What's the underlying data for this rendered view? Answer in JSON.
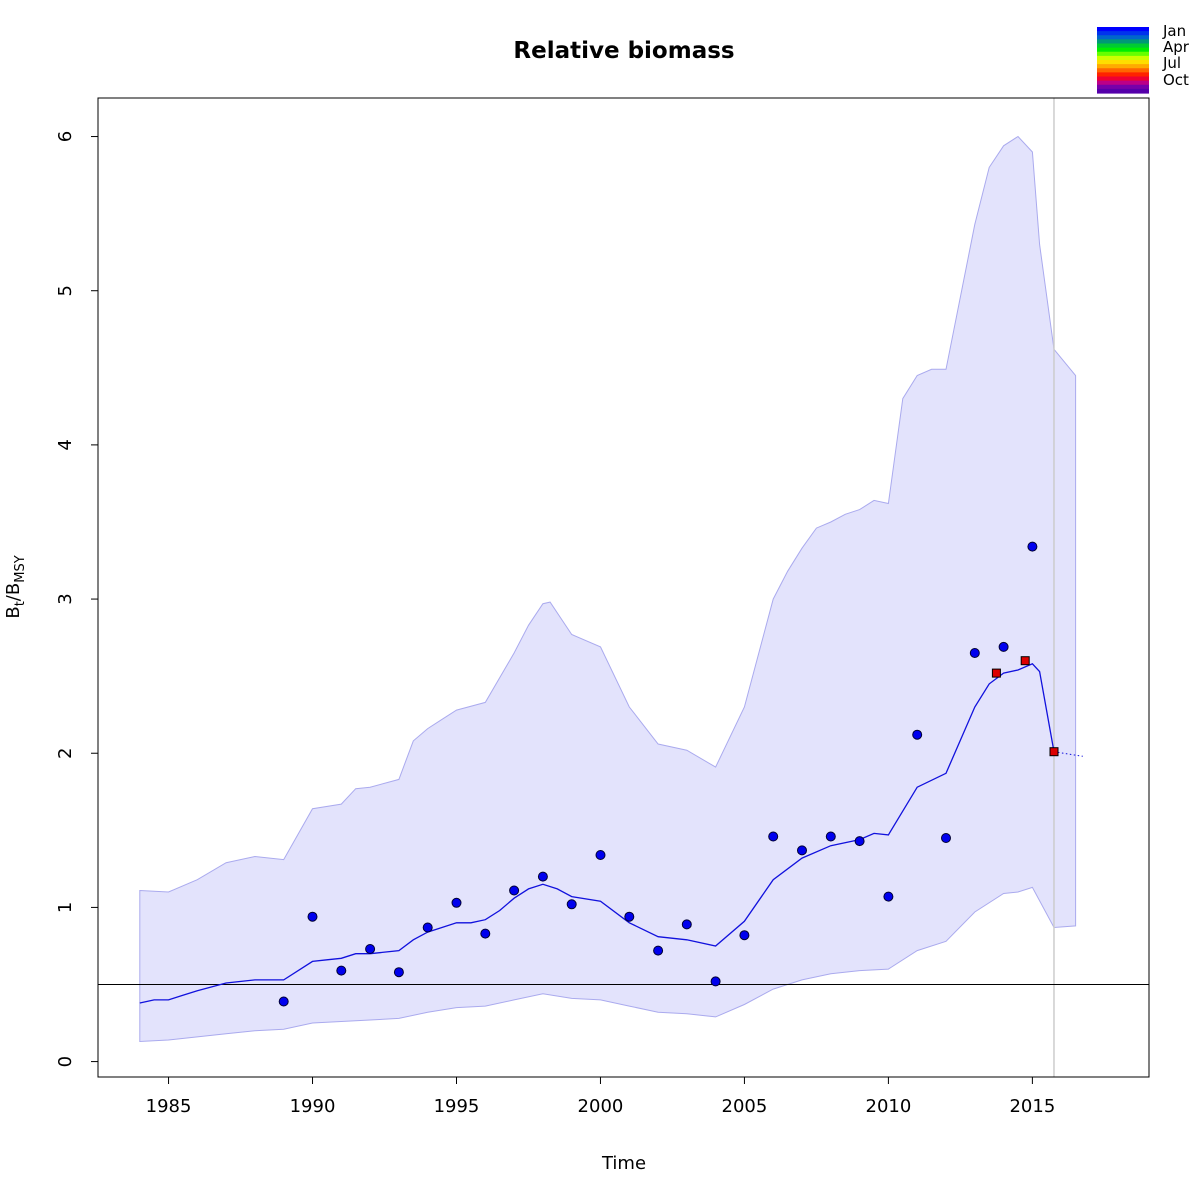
{
  "chart_data": {
    "type": "line",
    "title": "Relative biomass",
    "xlabel": "Time",
    "ylabel": {
      "main": "B",
      "sub1": "t",
      "sep": "/B",
      "sub2": "MSY"
    },
    "xlim": [
      1982.55,
      2019.05
    ],
    "ylim": [
      -0.1,
      6.25
    ],
    "x_ticks": [
      1985,
      1990,
      1995,
      2000,
      2005,
      2010,
      2015
    ],
    "y_ticks": [
      0,
      1,
      2,
      3,
      4,
      5,
      6
    ],
    "grid": false,
    "legend_placement": "top-right",
    "colors": {
      "band": "#e3e3fc",
      "band_edge": "#aaaaee",
      "line": "#1111dd",
      "points": "#0000ee",
      "highlight": "#dd0000",
      "reference_line": "#000000",
      "vertical_marker": "#cccccc"
    },
    "reference_line_y": 0.5,
    "vertical_marker_x": 2015.75,
    "legend": {
      "labels": [
        "Jan",
        "Apr",
        "Jul",
        "Oct"
      ],
      "color_scale": [
        "#0000ff",
        "#0033ee",
        "#0066cc",
        "#009977",
        "#00cc33",
        "#00ee00",
        "#66ff00",
        "#ccff00",
        "#ffdd00",
        "#ffaa00",
        "#ff6600",
        "#ff2200",
        "#ee0033",
        "#bb0088",
        "#7700aa",
        "#5500aa"
      ]
    },
    "series": [
      {
        "role": "confidence-band-upper",
        "x": [
          1984,
          1985,
          1986,
          1987,
          1988,
          1989,
          1990,
          1991,
          1991.5,
          1992,
          1993,
          1993.5,
          1994,
          1994.5,
          1995,
          1996,
          1997,
          1997.5,
          1998,
          1998.25,
          1999,
          2000,
          2001,
          2002,
          2003,
          2004,
          2005,
          2006,
          2006.5,
          2007,
          2007.5,
          2008,
          2008.5,
          2009,
          2009.5,
          2010,
          2010.5,
          2011,
          2011.5,
          2012,
          2013,
          2013.5,
          2014,
          2014.5,
          2015,
          2015.25,
          2015.75,
          2016.5
        ],
        "y": [
          1.11,
          1.1,
          1.18,
          1.29,
          1.33,
          1.31,
          1.64,
          1.67,
          1.77,
          1.78,
          1.83,
          2.08,
          2.16,
          2.22,
          2.28,
          2.33,
          2.65,
          2.83,
          2.97,
          2.98,
          2.77,
          2.69,
          2.3,
          2.06,
          2.02,
          1.91,
          2.3,
          3.0,
          3.18,
          3.33,
          3.46,
          3.5,
          3.55,
          3.58,
          3.64,
          3.62,
          4.3,
          4.45,
          4.49,
          4.49,
          5.43,
          5.8,
          5.94,
          6.0,
          5.9,
          5.3,
          4.62,
          4.45
        ]
      },
      {
        "role": "confidence-band-lower",
        "x": [
          1984,
          1985,
          1986,
          1987,
          1988,
          1989,
          1990,
          1991,
          1992,
          1993,
          1994,
          1995,
          1996,
          1997,
          1998,
          1999,
          2000,
          2001,
          2002,
          2003,
          2004,
          2005,
          2006,
          2007,
          2008,
          2009,
          2010,
          2011,
          2012,
          2013,
          2014,
          2014.5,
          2015,
          2015.75,
          2016.5
        ],
        "y": [
          0.13,
          0.14,
          0.16,
          0.18,
          0.2,
          0.21,
          0.25,
          0.26,
          0.27,
          0.28,
          0.32,
          0.35,
          0.36,
          0.4,
          0.44,
          0.41,
          0.4,
          0.36,
          0.32,
          0.31,
          0.29,
          0.37,
          0.47,
          0.53,
          0.57,
          0.59,
          0.6,
          0.72,
          0.78,
          0.97,
          1.09,
          1.1,
          1.13,
          0.87,
          0.88
        ]
      },
      {
        "role": "estimated-biomass",
        "x": [
          1984,
          1984.5,
          1985,
          1985.5,
          1986,
          1987,
          1988,
          1989,
          1990,
          1990.5,
          1991,
          1991.5,
          1992,
          1993,
          1993.5,
          1994,
          1995,
          1995.5,
          1996,
          1996.5,
          1997,
          1997.5,
          1998,
          1998.5,
          1999,
          2000,
          2001,
          2002,
          2003,
          2004,
          2005,
          2006,
          2007,
          2008,
          2009,
          2009.5,
          2010,
          2011,
          2012,
          2013,
          2013.5,
          2014,
          2014.5,
          2015,
          2015.25,
          2015.75
        ],
        "y": [
          0.38,
          0.4,
          0.4,
          0.43,
          0.46,
          0.51,
          0.53,
          0.53,
          0.65,
          0.66,
          0.67,
          0.7,
          0.7,
          0.72,
          0.79,
          0.84,
          0.9,
          0.9,
          0.92,
          0.98,
          1.06,
          1.12,
          1.15,
          1.12,
          1.07,
          1.04,
          0.9,
          0.81,
          0.79,
          0.75,
          0.91,
          1.18,
          1.32,
          1.4,
          1.44,
          1.48,
          1.47,
          1.78,
          1.87,
          2.3,
          2.45,
          2.52,
          2.54,
          2.58,
          2.53,
          2.01
        ]
      },
      {
        "role": "prediction-dotted",
        "x": [
          2015.75,
          2016.75
        ],
        "y": [
          2.01,
          1.98
        ]
      },
      {
        "role": "index-observations",
        "x": [
          1989,
          1990,
          1991,
          1992,
          1993,
          1994,
          1995,
          1996,
          1997,
          1998,
          1999,
          2000,
          2001,
          2002,
          2003,
          2004,
          2005,
          2006,
          2007,
          2008,
          2009,
          2010,
          2011,
          2012,
          2013,
          2014,
          2015
        ],
        "y": [
          0.39,
          0.94,
          0.59,
          0.73,
          0.58,
          0.87,
          1.03,
          0.83,
          1.11,
          1.2,
          1.02,
          1.34,
          0.94,
          0.72,
          0.89,
          0.52,
          0.82,
          1.46,
          1.37,
          1.46,
          1.43,
          1.07,
          2.12,
          1.45,
          2.65,
          2.69,
          3.34
        ]
      },
      {
        "role": "highlighted-states",
        "x": [
          2013.75,
          2014.75,
          2015.75
        ],
        "y": [
          2.52,
          2.6,
          2.01
        ]
      }
    ]
  }
}
